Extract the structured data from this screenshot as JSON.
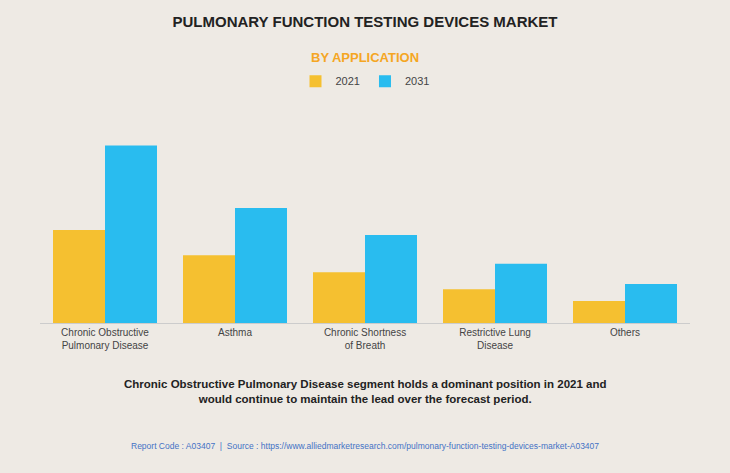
{
  "chart_data": {
    "type": "bar",
    "title": "PULMONARY FUNCTION TESTING DEVICES MARKET",
    "subtitle": "BY APPLICATION",
    "categories": [
      "Chronic Obstructive\nPulmonary Disease",
      "Asthma",
      "Chronic Shortness\nof Breath",
      "Restrictive Lung\nDisease",
      "Others"
    ],
    "series": [
      {
        "name": "2021",
        "color": "#F5C030",
        "values": [
          5.5,
          4.0,
          3.0,
          2.0,
          1.3
        ]
      },
      {
        "name": "2031",
        "color": "#29BCEF",
        "values": [
          10.5,
          6.8,
          5.2,
          3.5,
          2.3
        ]
      }
    ],
    "ylim": [
      0,
      12
    ],
    "grid": false,
    "legend": "top",
    "tick_labels": "x",
    "annotations": [
      "Chronic Obstructive Pulmonary Disease segment holds a dominant position in 2021 and\nwould continue to maintain the lead over the forecast period.",
      "Report Code : A03407  |  Source : https://www.alliedmarketresearch.com/pulmonary-function-testing-devices-market-A03407"
    ]
  }
}
